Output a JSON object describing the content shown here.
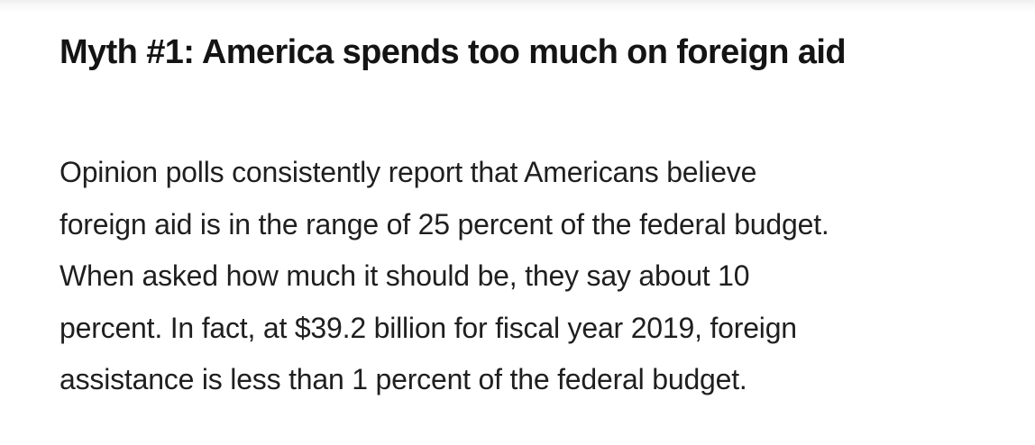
{
  "article": {
    "heading": "Myth #1: America spends too much on foreign aid",
    "paragraph_lines": [
      "Opinion polls consistently report that Americans believe",
      "foreign aid is in the range of 25 percent of the federal budget.",
      "When asked how much it should be, they say about 10",
      "percent. In fact, at $39.2 billion for fiscal year 2019, foreign",
      "assistance is less than 1 percent of the federal budget."
    ]
  }
}
